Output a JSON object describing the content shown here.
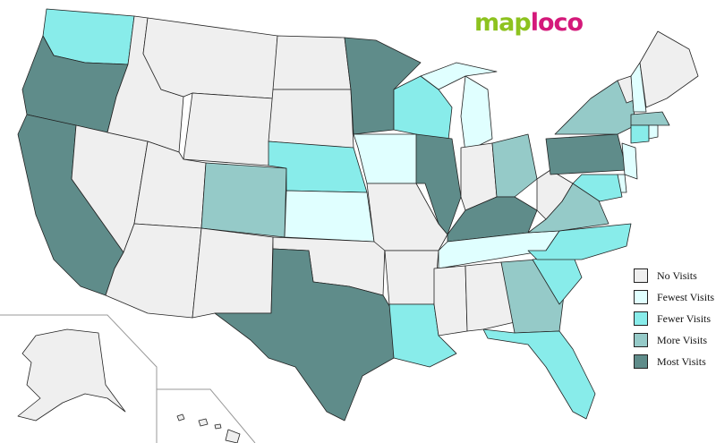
{
  "logo": {
    "part1": "map",
    "part2": "loco"
  },
  "colors": {
    "none": "#efefef",
    "fewest": "#e0ffff",
    "fewer": "#88ecea",
    "more": "#95cac8",
    "most": "#5f8c8a"
  },
  "legend": [
    {
      "key": "none",
      "label": "No Visits"
    },
    {
      "key": "fewest",
      "label": "Fewest Visits"
    },
    {
      "key": "fewer",
      "label": "Fewer Visits"
    },
    {
      "key": "more",
      "label": "More Visits"
    },
    {
      "key": "most",
      "label": "Most Visits"
    }
  ],
  "states": {
    "WA": "fewer",
    "OR": "most",
    "CA": "most",
    "NV": "none",
    "ID": "none",
    "MT": "none",
    "WY": "none",
    "UT": "none",
    "AZ": "none",
    "CO": "more",
    "NM": "none",
    "ND": "none",
    "SD": "none",
    "NE": "fewer",
    "KS": "fewest",
    "OK": "none",
    "TX": "most",
    "MN": "most",
    "IA": "fewest",
    "MO": "none",
    "AR": "none",
    "LA": "fewer",
    "WI": "fewer",
    "IL": "most",
    "MI": "fewest",
    "IN": "none",
    "OH": "more",
    "KY": "most",
    "TN": "fewest",
    "MS": "none",
    "AL": "none",
    "GA": "more",
    "FL": "fewer",
    "SC": "fewer",
    "NC": "fewer",
    "VA": "more",
    "WV": "none",
    "PA": "most",
    "NY": "more",
    "VT": "none",
    "NH": "fewest",
    "ME": "none",
    "MA": "more",
    "CT": "fewer",
    "RI": "fewest",
    "NJ": "fewest",
    "DE": "fewest",
    "MD": "fewer",
    "AK": "none",
    "HI": "none"
  }
}
